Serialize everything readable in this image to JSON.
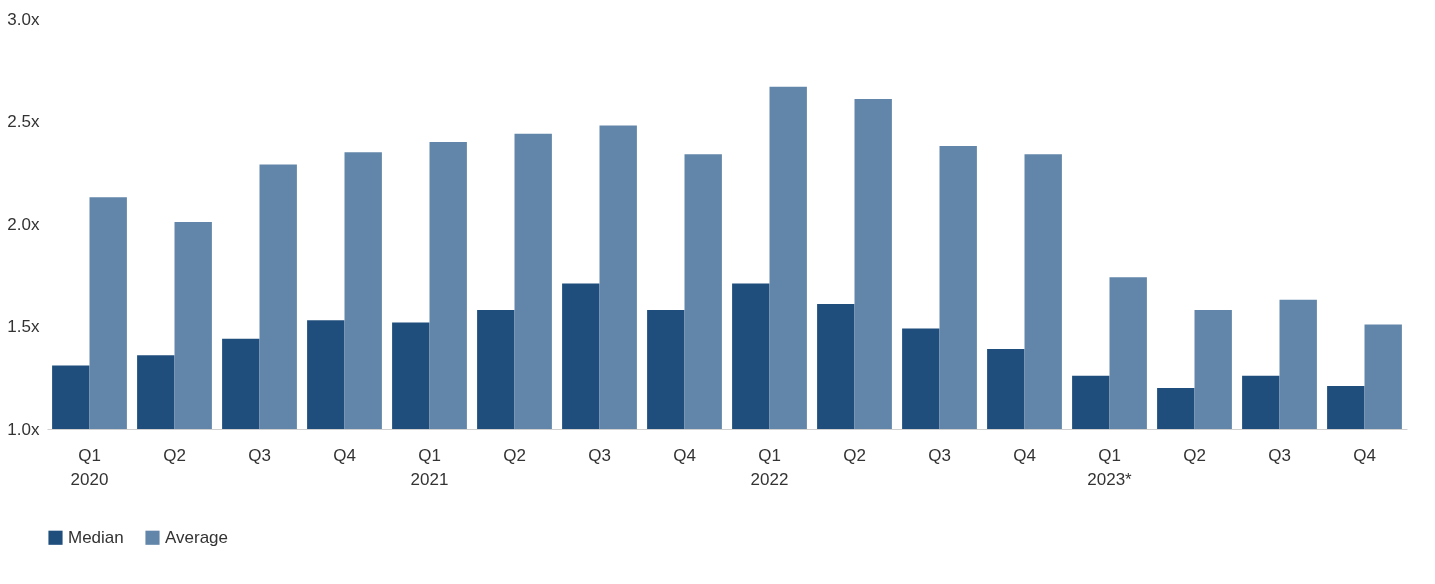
{
  "chart_data": {
    "type": "bar",
    "categories": [
      "Q1\n\n2020",
      "Q2",
      "Q3",
      "Q4",
      "Q1\n\n2021",
      "Q2",
      "Q3",
      "Q4",
      "Q1\n\n2022",
      "Q2",
      "Q3",
      "Q4",
      "Q1\n\n2023*",
      "Q2",
      "Q3",
      "Q4"
    ],
    "series": [
      {
        "name": "Median",
        "color": "#1f4e7d",
        "values": [
          1.31,
          1.36,
          1.44,
          1.53,
          1.52,
          1.58,
          1.71,
          1.58,
          1.71,
          1.61,
          1.49,
          1.39,
          1.26,
          1.2,
          1.26,
          1.21
        ]
      },
      {
        "name": "Average",
        "color": "#6286aa",
        "values": [
          2.13,
          2.01,
          2.29,
          2.35,
          2.4,
          2.44,
          2.48,
          2.34,
          2.67,
          2.61,
          2.38,
          2.34,
          1.74,
          1.58,
          1.63,
          1.51
        ]
      }
    ],
    "ylim": [
      1,
      3
    ],
    "yticks": [
      {
        "value": 1,
        "label": "1.0x"
      },
      {
        "value": 1.5,
        "label": "1.5x"
      },
      {
        "value": 2,
        "label": "2.0x"
      },
      {
        "value": 2.5,
        "label": "2.5x"
      },
      {
        "value": 3,
        "label": "3.0x"
      }
    ],
    "grid": false,
    "legend": "bottom"
  }
}
